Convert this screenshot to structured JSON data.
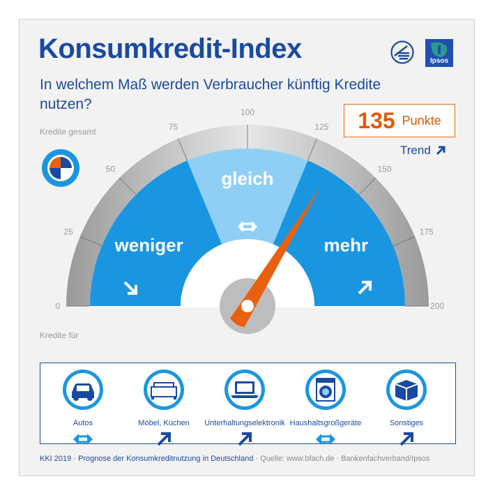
{
  "header": {
    "title": "Konsumkredit-Index",
    "subtitle": "In welchem Maß werden Verbraucher künftig Kredite nutzen?",
    "logo_partner": "Ipsos"
  },
  "score": {
    "value": "135",
    "unit": "Punkte",
    "trend_label": "Trend"
  },
  "gauge_label": "Kredite gesamt",
  "categories_label": "Kredite für",
  "chart_data": {
    "type": "gauge",
    "value": 135,
    "range": [
      0,
      200
    ],
    "tick_labels": [
      "0",
      "25",
      "50",
      "75",
      "100",
      "125",
      "150",
      "175",
      "200"
    ],
    "zones": [
      {
        "label": "weniger",
        "from": 0,
        "to": 75,
        "trend": "down"
      },
      {
        "label": "gleich",
        "from": 75,
        "to": 125,
        "trend": "equal"
      },
      {
        "label": "mehr",
        "from": 125,
        "to": 200,
        "trend": "up"
      }
    ]
  },
  "categories": [
    {
      "label": "Autos",
      "icon": "car-icon",
      "trend": "equal"
    },
    {
      "label": "Möbel, Küchen",
      "icon": "sofa-icon",
      "trend": "up"
    },
    {
      "label": "Unterhaltungselektronik",
      "icon": "laptop-icon",
      "trend": "up"
    },
    {
      "label": "Haushaltsgroßgeräte",
      "icon": "washing-machine-icon",
      "trend": "equal"
    },
    {
      "label": "Sonstiges",
      "icon": "box-icon",
      "trend": "up"
    }
  ],
  "footer": {
    "main": "KKI 2019 · Prognose der Konsumkreditnutzung in Deutschland",
    "source": " · Quelle: www.bfach.de · Bankenfachverband/Ipsos"
  },
  "colors": {
    "brand_blue": "#1a4aa0",
    "zone_blue": "#1a96e0",
    "zone_light": "#8fcff5",
    "needle": "#e9600f",
    "ipsos_green": "#2b9a8a",
    "ipsos_blue": "#1f4fb0"
  }
}
